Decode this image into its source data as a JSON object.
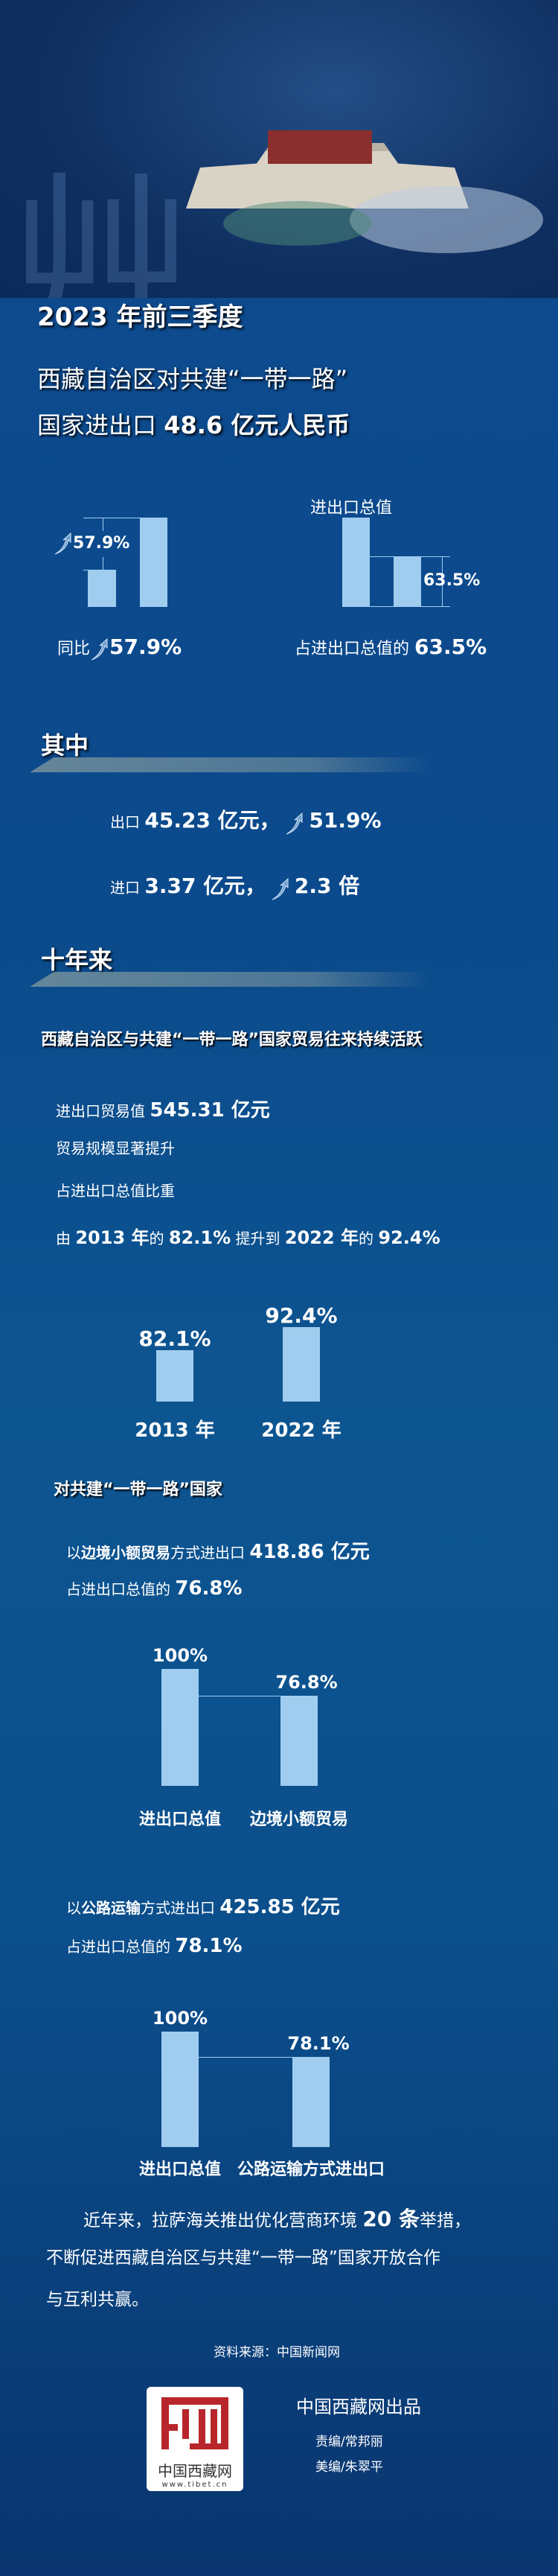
{
  "colors": {
    "bar": "#a0cdef",
    "background": "#0b4a8c",
    "logo_red": "#b8262b"
  },
  "header": {
    "title_line1": "2023 年前三季度",
    "title_line2": "西藏自治区对共建“一带一路”",
    "title_line3_prefix": "国家进出口 ",
    "title_line3_value": "48.6 亿元人民币"
  },
  "growth_chart": {
    "label": "57.9%",
    "caption_prefix": "同比",
    "caption_value": "57.9%",
    "icon": "up-arrow-icon"
  },
  "share_chart": {
    "top_label": "进出口总值",
    "label": "63.5%",
    "caption_prefix": "占进出口总值的 ",
    "caption_value": "63.5%"
  },
  "section_among": {
    "heading": "其中",
    "export_prefix": "出口 ",
    "export_value": "45.23 亿元，",
    "export_growth": "51.9%",
    "import_prefix": "进口 ",
    "import_value": "3.37 亿元，",
    "import_growth": "2.3 倍"
  },
  "section_decade": {
    "heading": "十年来",
    "subheading": "西藏自治区与共建“一带一路”国家贸易往来持续活跃",
    "trade_prefix": "进出口贸易值 ",
    "trade_value": "545.31 亿元",
    "line2": "贸易规模显著提升",
    "line3": "占进出口总值比重",
    "line4": [
      {
        "t": "由 ",
        "b": false
      },
      {
        "t": "2013 年",
        "b": true
      },
      {
        "t": "的 ",
        "b": false
      },
      {
        "t": "82.1%",
        "b": true
      },
      {
        "t": " 提升到 ",
        "b": false
      },
      {
        "t": "2022 年",
        "b": true
      },
      {
        "t": "的 ",
        "b": false
      },
      {
        "t": "92.4%",
        "b": true
      }
    ]
  },
  "chart_data": [
    {
      "type": "bar",
      "categories": [
        "2013 年",
        "2022 年"
      ],
      "values": [
        82.1,
        92.4
      ],
      "labels": [
        "82.1%",
        "92.4%"
      ]
    },
    {
      "type": "bar",
      "categories": [
        "进出口总值",
        "边境小额贸易"
      ],
      "values": [
        100,
        76.8
      ],
      "labels": [
        "100%",
        "76.8%"
      ]
    },
    {
      "type": "bar",
      "categories": [
        "进出口总值",
        "公路运输方式进出口"
      ],
      "values": [
        100,
        78.1
      ],
      "labels": [
        "100%",
        "78.1%"
      ]
    }
  ],
  "section_countries": {
    "subheading": "对共建“一带一路”国家",
    "border_p1": "以",
    "border_bold": "边境小额贸易",
    "border_p2": "方式进出口 ",
    "border_value": "418.86 亿元",
    "border_share_prefix": "占进出口总值的 ",
    "border_share": "76.8%",
    "road_p1": "以",
    "road_bold": "公路运输",
    "road_p2": "方式进出口 ",
    "road_value": "425.85 亿元",
    "road_share_prefix": "占进出口总值的 ",
    "road_share": "78.1%"
  },
  "closing": {
    "l1a": "近年来，拉萨海关推出优化营商环境 ",
    "l1b": "20 条",
    "l1c": "举措，",
    "l2": "不断促进西藏自治区与共建“一带一路”国家开放合作",
    "l3": "与互利共赢。"
  },
  "footer": {
    "source": "资料来源：中国新闻网",
    "logo_text": "中国西藏网",
    "logo_url": "www.tibet.cn",
    "producer": "中国西藏网出品",
    "editor": "责编/常邦丽",
    "designer": "美编/朱翠平"
  }
}
